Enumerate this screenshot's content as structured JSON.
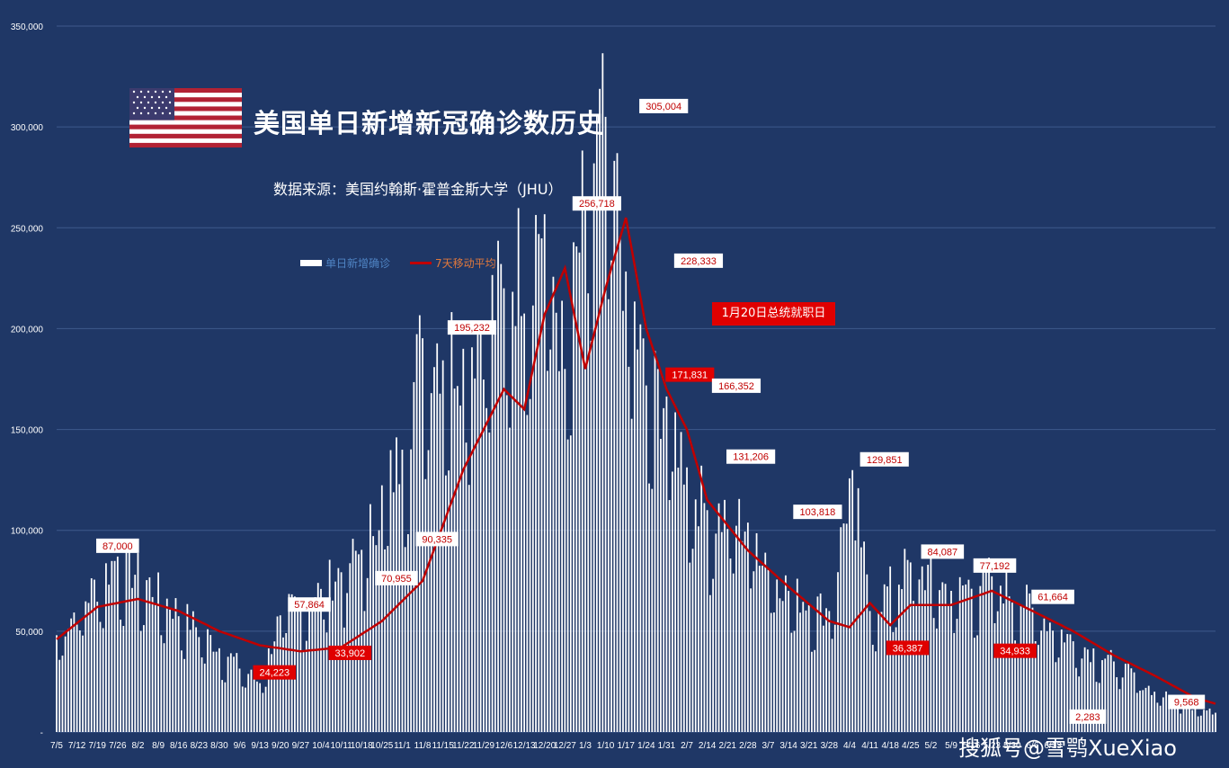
{
  "title": "美国单日新增新冠确诊数历史",
  "source": "数据来源：美国约翰斯·霍普金斯大学（JHU）",
  "legend": {
    "bars": "单日新增确诊",
    "line": "7天移动平均"
  },
  "inauguration_label": "1月20日总统就职日",
  "watermark": "搜狐号@雪鹗XueXiao",
  "flag_icon": "us-flag-icon",
  "colors": {
    "background": "#1f3766",
    "bars": "#ffffff",
    "line": "#c00000",
    "label_red": "#e00000"
  },
  "chart_data": {
    "type": "bar",
    "title": "美国单日新增新冠确诊数历史",
    "xlabel": "",
    "ylabel": "",
    "ylim": [
      0,
      350000
    ],
    "y_ticks": [
      "-",
      "50,000",
      "100,000",
      "150,000",
      "200,000",
      "250,000",
      "300,000",
      "350,000"
    ],
    "x_ticks": [
      "7/5",
      "7/12",
      "7/19",
      "7/26",
      "8/2",
      "8/9",
      "8/16",
      "8/23",
      "8/30",
      "9/6",
      "9/13",
      "9/20",
      "9/27",
      "10/4",
      "10/11",
      "10/18",
      "10/25",
      "11/1",
      "11/8",
      "11/15",
      "11/22",
      "11/29",
      "12/6",
      "12/13",
      "12/20",
      "12/27",
      "1/3",
      "1/10",
      "1/17",
      "1/24",
      "1/31",
      "2/7",
      "2/14",
      "2/21",
      "2/28",
      "3/7",
      "3/14",
      "3/21",
      "3/28",
      "4/4",
      "4/11",
      "4/18",
      "4/25",
      "5/2",
      "5/9",
      "5/16",
      "5/23",
      "5/30",
      "6/6",
      "6/13"
    ],
    "grid": true,
    "series": [
      {
        "name": "单日新增确诊",
        "kind": "bar",
        "anchors": [
          [
            0,
            48000
          ],
          [
            21,
            87000
          ],
          [
            70,
            24223
          ],
          [
            77,
            57864
          ],
          [
            91,
            70955
          ],
          [
            105,
            90335
          ],
          [
            119,
            140000
          ],
          [
            126,
            195232
          ],
          [
            140,
            190000
          ],
          [
            154,
            220000
          ],
          [
            168,
            256718
          ],
          [
            175,
            180000
          ],
          [
            182,
            265000
          ],
          [
            189,
            305004
          ],
          [
            196,
            228333
          ],
          [
            203,
            171831
          ],
          [
            210,
            166352
          ],
          [
            217,
            131206
          ],
          [
            224,
            110000
          ],
          [
            238,
            103818
          ],
          [
            252,
            70000
          ],
          [
            266,
            60000
          ],
          [
            274,
            129851
          ],
          [
            280,
            60000
          ],
          [
            294,
            84087
          ],
          [
            308,
            70000
          ],
          [
            322,
            77192
          ],
          [
            336,
            61664
          ],
          [
            350,
            45000
          ],
          [
            364,
            35000
          ],
          [
            378,
            20000
          ],
          [
            392,
            12000
          ],
          [
            399,
            9568
          ]
        ]
      },
      {
        "name": "7天移动平均",
        "kind": "line",
        "anchors": [
          [
            0,
            46000
          ],
          [
            14,
            62000
          ],
          [
            28,
            66000
          ],
          [
            42,
            60000
          ],
          [
            56,
            50000
          ],
          [
            70,
            43000
          ],
          [
            84,
            40000
          ],
          [
            98,
            42000
          ],
          [
            112,
            55000
          ],
          [
            126,
            75000
          ],
          [
            140,
            130000
          ],
          [
            154,
            170000
          ],
          [
            161,
            160000
          ],
          [
            168,
            207000
          ],
          [
            175,
            230000
          ],
          [
            182,
            180000
          ],
          [
            189,
            220000
          ],
          [
            196,
            255000
          ],
          [
            203,
            200000
          ],
          [
            210,
            170000
          ],
          [
            217,
            150000
          ],
          [
            224,
            115000
          ],
          [
            238,
            90000
          ],
          [
            252,
            72000
          ],
          [
            266,
            55000
          ],
          [
            273,
            52000
          ],
          [
            280,
            64000
          ],
          [
            287,
            53000
          ],
          [
            294,
            63000
          ],
          [
            308,
            63000
          ],
          [
            322,
            70000
          ],
          [
            336,
            60000
          ],
          [
            350,
            50000
          ],
          [
            364,
            38000
          ],
          [
            378,
            28000
          ],
          [
            392,
            17000
          ],
          [
            399,
            14000
          ]
        ]
      }
    ],
    "annotations": [
      {
        "label": "87,000",
        "day": 21,
        "value": 87000,
        "style": "white"
      },
      {
        "label": "24,223",
        "day": 75,
        "value": 24223,
        "style": "red"
      },
      {
        "label": "57,864",
        "day": 87,
        "value": 57864,
        "style": "white"
      },
      {
        "label": "33,902",
        "day": 101,
        "value": 33902,
        "style": "red"
      },
      {
        "label": "70,955",
        "day": 117,
        "value": 70955,
        "style": "white"
      },
      {
        "label": "90,335",
        "day": 131,
        "value": 90335,
        "style": "white"
      },
      {
        "label": "195,232",
        "day": 143,
        "value": 195232,
        "style": "white"
      },
      {
        "label": "256,718",
        "day": 186,
        "value": 256718,
        "style": "white"
      },
      {
        "label": "305,004",
        "day": 209,
        "value": 305004,
        "style": "white"
      },
      {
        "label": "228,333",
        "day": 221,
        "value": 228333,
        "style": "white"
      },
      {
        "label": "171,831",
        "day": 218,
        "value": 171831,
        "style": "red"
      },
      {
        "label": "166,352",
        "day": 234,
        "value": 166352,
        "style": "white"
      },
      {
        "label": "131,206",
        "day": 239,
        "value": 131206,
        "style": "white"
      },
      {
        "label": "103,818",
        "day": 262,
        "value": 103818,
        "style": "white"
      },
      {
        "label": "129,851",
        "day": 285,
        "value": 129851,
        "style": "white"
      },
      {
        "label": "36,387",
        "day": 293,
        "value": 36387,
        "style": "red"
      },
      {
        "label": "84,087",
        "day": 305,
        "value": 84087,
        "style": "white"
      },
      {
        "label": "77,192",
        "day": 323,
        "value": 77192,
        "style": "white"
      },
      {
        "label": "34,933",
        "day": 330,
        "value": 34933,
        "style": "red"
      },
      {
        "label": "61,664",
        "day": 343,
        "value": 61664,
        "style": "white"
      },
      {
        "label": "2,283",
        "day": 355,
        "value": 2283,
        "style": "white"
      },
      {
        "label": "9,568",
        "day": 389,
        "value": 9568,
        "style": "white"
      }
    ]
  }
}
